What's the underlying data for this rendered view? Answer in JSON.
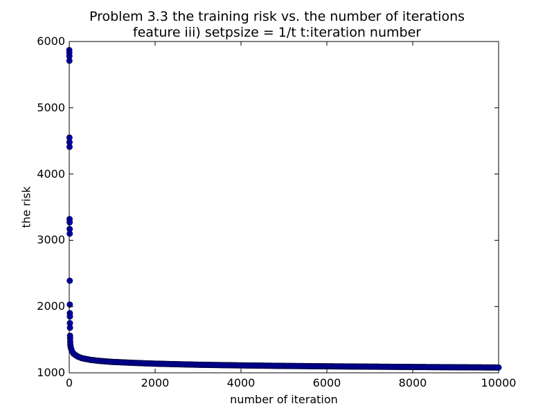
{
  "chart_data": {
    "type": "scatter",
    "title_line1": "Problem 3.3 the training risk vs. the number of iterations",
    "title_line2": "feature iii) setpsize = 1/t t:iteration number",
    "xlabel": "number of iteration",
    "ylabel": "the risk",
    "xlim": [
      0,
      10000
    ],
    "ylim": [
      1000,
      6000
    ],
    "x_ticks": [
      "0",
      "2000",
      "4000",
      "6000",
      "8000",
      "10000"
    ],
    "y_ticks": [
      "1000",
      "2000",
      "3000",
      "4000",
      "5000",
      "6000"
    ],
    "grid": false,
    "marker_color": "#0000bf",
    "early_points": [
      {
        "x": 1,
        "y": 5870
      },
      {
        "x": 2,
        "y": 5830
      },
      {
        "x": 3,
        "y": 5780
      },
      {
        "x": 4,
        "y": 5710
      },
      {
        "x": 5,
        "y": 4550
      },
      {
        "x": 6,
        "y": 4480
      },
      {
        "x": 7,
        "y": 4410
      },
      {
        "x": 8,
        "y": 3320
      },
      {
        "x": 9,
        "y": 3270
      },
      {
        "x": 10,
        "y": 3170
      },
      {
        "x": 11,
        "y": 3100
      },
      {
        "x": 12,
        "y": 2390
      },
      {
        "x": 13,
        "y": 2030
      },
      {
        "x": 14,
        "y": 1900
      },
      {
        "x": 15,
        "y": 1850
      },
      {
        "x": 16,
        "y": 1750
      },
      {
        "x": 17,
        "y": 1680
      },
      {
        "x": 18,
        "y": 1560
      },
      {
        "x": 20,
        "y": 1520
      },
      {
        "x": 22,
        "y": 1470
      },
      {
        "x": 25,
        "y": 1430
      },
      {
        "x": 30,
        "y": 1400
      },
      {
        "x": 40,
        "y": 1370
      },
      {
        "x": 50,
        "y": 1350
      },
      {
        "x": 70,
        "y": 1320
      },
      {
        "x": 100,
        "y": 1290
      }
    ],
    "curve": [
      {
        "x": 100,
        "y": 1290
      },
      {
        "x": 150,
        "y": 1265
      },
      {
        "x": 200,
        "y": 1245
      },
      {
        "x": 300,
        "y": 1220
      },
      {
        "x": 500,
        "y": 1195
      },
      {
        "x": 700,
        "y": 1180
      },
      {
        "x": 1000,
        "y": 1165
      },
      {
        "x": 1500,
        "y": 1150
      },
      {
        "x": 2000,
        "y": 1138
      },
      {
        "x": 2500,
        "y": 1130
      },
      {
        "x": 3000,
        "y": 1122
      },
      {
        "x": 4000,
        "y": 1112
      },
      {
        "x": 5000,
        "y": 1104
      },
      {
        "x": 6000,
        "y": 1098
      },
      {
        "x": 7000,
        "y": 1093
      },
      {
        "x": 8000,
        "y": 1088
      },
      {
        "x": 9000,
        "y": 1084
      },
      {
        "x": 10000,
        "y": 1080
      }
    ]
  }
}
